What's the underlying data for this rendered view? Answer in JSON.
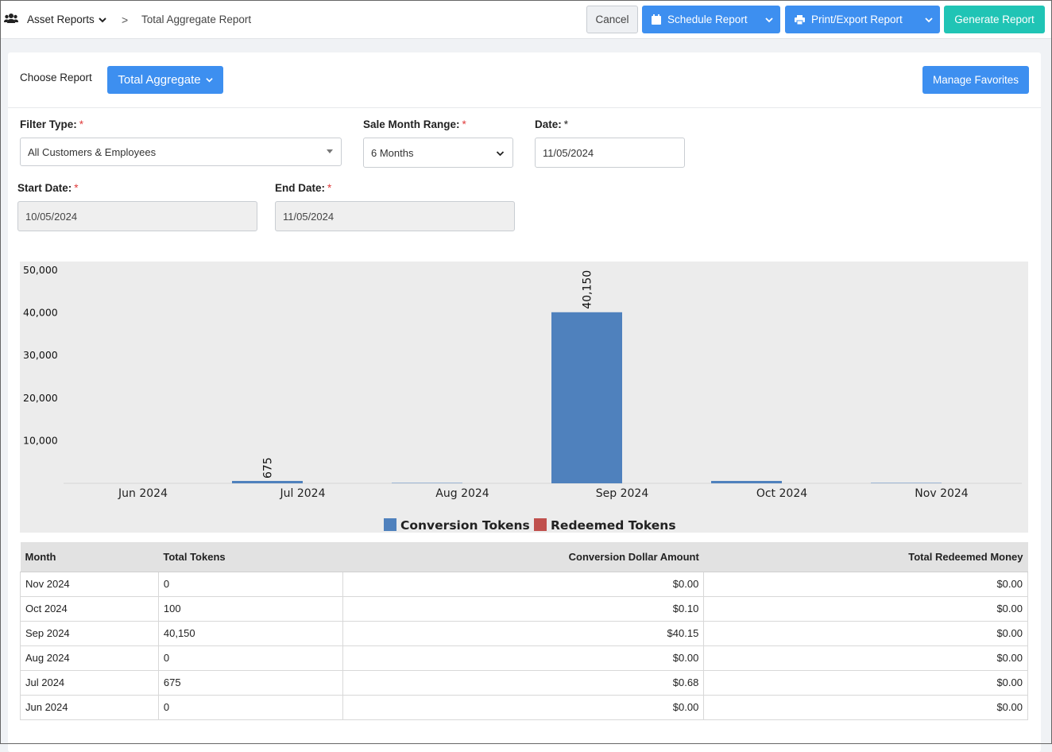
{
  "breadcrumb": {
    "root": "Asset Reports",
    "separator": ">",
    "current": "Total Aggregate Report"
  },
  "toolbar": {
    "cancel_label": "Cancel",
    "schedule_label": "Schedule Report",
    "print_label": "Print/Export Report",
    "generate_label": "Generate Report"
  },
  "report": {
    "choose_label": "Choose Report",
    "selected": "Total Aggregate",
    "manage_favorites_label": "Manage Favorites"
  },
  "filters": {
    "filter_type": {
      "label": "Filter Type:",
      "required": "*",
      "value": "All Customers & Employees"
    },
    "month_range": {
      "label": "Sale Month Range:",
      "required": "*",
      "value": "6 Months"
    },
    "date": {
      "label": "Date:",
      "required": "*",
      "value": "11/05/2024"
    },
    "start_date": {
      "label": "Start Date:",
      "required": "*",
      "value": "10/05/2024"
    },
    "end_date": {
      "label": "End Date:",
      "required": "*",
      "value": "11/05/2024"
    }
  },
  "chart_data": {
    "type": "bar",
    "categories": [
      "Jun 2024",
      "Jul 2024",
      "Aug 2024",
      "Sep 2024",
      "Oct 2024",
      "Nov 2024"
    ],
    "series": [
      {
        "name": "Conversion Tokens",
        "color": "#4f81bd",
        "values": [
          0,
          675,
          0,
          40150,
          100,
          0
        ]
      },
      {
        "name": "Redeemed Tokens",
        "color": "#c0504d",
        "values": [
          0,
          0,
          0,
          0,
          0,
          0
        ]
      }
    ],
    "data_labels": [
      "",
      "675",
      "",
      "40,150",
      "",
      ""
    ],
    "yticks": [
      "10,000",
      "20,000",
      "30,000",
      "40,000",
      "50,000"
    ],
    "ytick_values": [
      10000,
      20000,
      30000,
      40000,
      50000
    ],
    "ylim": [
      0,
      50000
    ],
    "legend_position": "bottom",
    "grid": false
  },
  "table": {
    "headers": [
      "Month",
      "Total Tokens",
      "Conversion Dollar Amount",
      "Total Redeemed Money"
    ],
    "rows": [
      [
        "Nov 2024",
        "0",
        "$0.00",
        "$0.00"
      ],
      [
        "Oct 2024",
        "100",
        "$0.10",
        "$0.00"
      ],
      [
        "Sep 2024",
        "40,150",
        "$40.15",
        "$0.00"
      ],
      [
        "Aug 2024",
        "0",
        "$0.00",
        "$0.00"
      ],
      [
        "Jul 2024",
        "675",
        "$0.68",
        "$0.00"
      ],
      [
        "Jun 2024",
        "0",
        "$0.00",
        "$0.00"
      ]
    ]
  }
}
